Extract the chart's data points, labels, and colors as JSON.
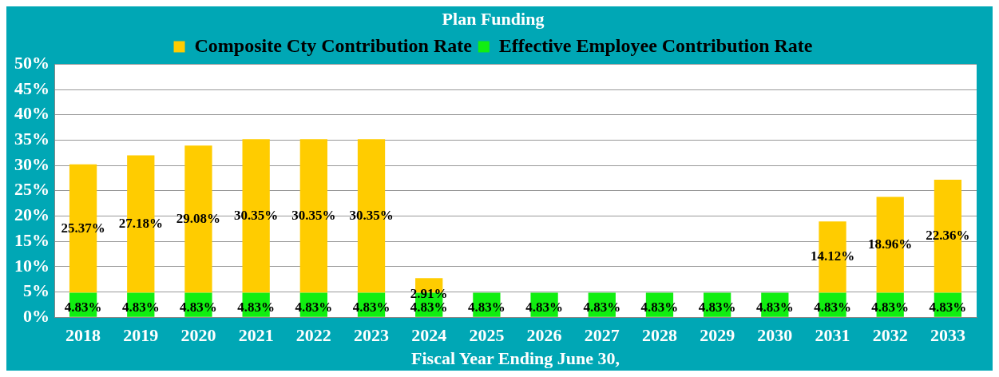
{
  "chart_data": {
    "type": "bar",
    "title": "Plan Funding",
    "xlabel": "Fiscal Year Ending June 30,",
    "stacked": true,
    "grid": "y",
    "legend": "top",
    "categories": [
      "2018",
      "2019",
      "2020",
      "2021",
      "2022",
      "2023",
      "2024",
      "2025",
      "2026",
      "2027",
      "2028",
      "2029",
      "2030",
      "2031",
      "2032",
      "2033"
    ],
    "series": [
      {
        "name": "Effective Employee Contribution Rate",
        "color": "#11ee11",
        "values": [
          4.83,
          4.83,
          4.83,
          4.83,
          4.83,
          4.83,
          4.83,
          4.83,
          4.83,
          4.83,
          4.83,
          4.83,
          4.83,
          4.83,
          4.83,
          4.83
        ],
        "value_labels": [
          "4.83%",
          "4.83%",
          "4.83%",
          "4.83%",
          "4.83%",
          "4.83%",
          "4.83%",
          "4.83%",
          "4.83%",
          "4.83%",
          "4.83%",
          "4.83%",
          "4.83%",
          "4.83%",
          "4.83%",
          "4.83%"
        ]
      },
      {
        "name": "Composite Cty Contribution Rate",
        "color": "#ffcc00",
        "values": [
          25.37,
          27.18,
          29.08,
          30.35,
          30.35,
          30.35,
          2.91,
          null,
          null,
          null,
          null,
          null,
          null,
          14.12,
          18.96,
          22.36
        ],
        "value_labels": [
          "25.37%",
          "27.18%",
          "29.08%",
          "30.35%",
          "30.35%",
          "30.35%",
          "2.91%",
          null,
          null,
          null,
          null,
          null,
          null,
          "14.12%",
          "18.96%",
          "22.36%"
        ]
      }
    ],
    "ylim": [
      0,
      50
    ],
    "yticks": [
      {
        "value": 0,
        "label": "0%"
      },
      {
        "value": 5,
        "label": "5%"
      },
      {
        "value": 10,
        "label": "10%"
      },
      {
        "value": 15,
        "label": "15%"
      },
      {
        "value": 20,
        "label": "20%"
      },
      {
        "value": 25,
        "label": "25%"
      },
      {
        "value": 30,
        "label": "30%"
      },
      {
        "value": 35,
        "label": "35%"
      },
      {
        "value": 40,
        "label": "40%"
      },
      {
        "value": 45,
        "label": "45%"
      },
      {
        "value": 50,
        "label": "50%"
      }
    ]
  }
}
